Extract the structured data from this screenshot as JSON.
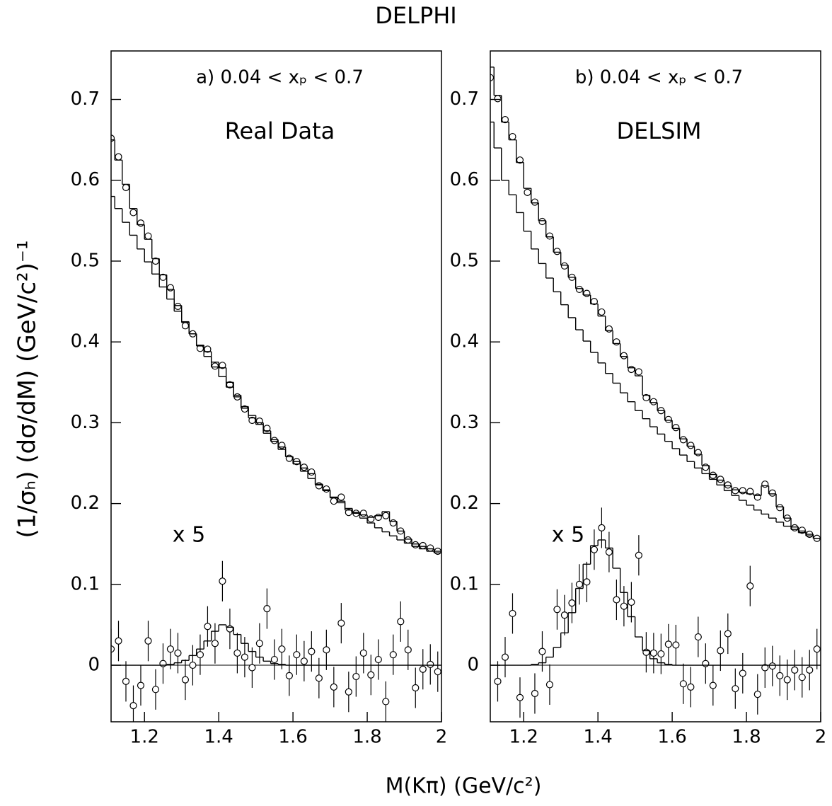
{
  "title": "DELPHI",
  "ylabel": "(1/σₕ) (dσ/dM)   (GeV/c²)⁻¹",
  "xlabel": "M(Kπ)   (GeV/c²)",
  "chart_data": [
    {
      "type": "hist-points",
      "label": "a)  0.04 < xₚ < 0.7",
      "sublabel": "Real Data",
      "scale_note": "x 5",
      "xlim": [
        1.11,
        2.0
      ],
      "ylim": [
        -0.07,
        0.76
      ],
      "xticks": [
        1.2,
        1.4,
        1.6,
        1.8,
        2
      ],
      "yticks": [
        0,
        0.1,
        0.2,
        0.3,
        0.4,
        0.5,
        0.6,
        0.7
      ],
      "x": [
        1.11,
        1.13,
        1.15,
        1.17,
        1.19,
        1.21,
        1.23,
        1.25,
        1.27,
        1.29,
        1.31,
        1.33,
        1.35,
        1.37,
        1.39,
        1.41,
        1.43,
        1.45,
        1.47,
        1.49,
        1.51,
        1.53,
        1.55,
        1.57,
        1.59,
        1.61,
        1.63,
        1.65,
        1.67,
        1.69,
        1.71,
        1.73,
        1.75,
        1.77,
        1.79,
        1.81,
        1.83,
        1.85,
        1.87,
        1.89,
        1.91,
        1.93,
        1.95,
        1.97,
        1.99
      ],
      "series": [
        {
          "style": "points",
          "values": [
            0.652,
            0.629,
            0.591,
            0.56,
            0.547,
            0.531,
            0.5,
            0.48,
            0.467,
            0.444,
            0.42,
            0.41,
            0.392,
            0.391,
            0.37,
            0.371,
            0.347,
            0.332,
            0.317,
            0.303,
            0.302,
            0.293,
            0.278,
            0.272,
            0.256,
            0.252,
            0.245,
            0.239,
            0.222,
            0.218,
            0.203,
            0.208,
            0.189,
            0.188,
            0.188,
            0.181,
            0.183,
            0.185,
            0.176,
            0.166,
            0.155,
            0.149,
            0.148,
            0.145,
            0.141
          ]
        },
        {
          "style": "step",
          "values": [
            0.65,
            0.625,
            0.595,
            0.565,
            0.545,
            0.527,
            0.503,
            0.483,
            0.465,
            0.445,
            0.425,
            0.41,
            0.395,
            0.388,
            0.375,
            0.368,
            0.35,
            0.334,
            0.318,
            0.306,
            0.3,
            0.29,
            0.279,
            0.27,
            0.258,
            0.252,
            0.244,
            0.237,
            0.224,
            0.217,
            0.207,
            0.203,
            0.192,
            0.189,
            0.186,
            0.183,
            0.185,
            0.19,
            0.178,
            0.166,
            0.156,
            0.15,
            0.147,
            0.144,
            0.141
          ]
        },
        {
          "style": "step",
          "values": [
            0.58,
            0.565,
            0.548,
            0.532,
            0.515,
            0.499,
            0.484,
            0.468,
            0.453,
            0.438,
            0.424,
            0.41,
            0.396,
            0.382,
            0.369,
            0.357,
            0.344,
            0.332,
            0.32,
            0.309,
            0.298,
            0.287,
            0.277,
            0.267,
            0.258,
            0.249,
            0.24,
            0.231,
            0.223,
            0.216,
            0.208,
            0.201,
            0.194,
            0.188,
            0.182,
            0.176,
            0.17,
            0.165,
            0.16,
            0.155,
            0.151,
            0.147,
            0.144,
            0.141,
            0.139
          ]
        },
        {
          "style": "points",
          "error": 0.025,
          "values": [
            0.02,
            0.03,
            -0.02,
            -0.05,
            -0.025,
            0.03,
            -0.03,
            0.002,
            0.02,
            0.015,
            -0.018,
            0.0,
            0.013,
            0.048,
            0.027,
            0.104,
            0.045,
            0.015,
            0.01,
            -0.003,
            0.027,
            0.07,
            0.007,
            0.02,
            -0.013,
            0.013,
            0.005,
            0.017,
            -0.016,
            0.019,
            -0.027,
            0.052,
            -0.033,
            -0.014,
            0.015,
            -0.012,
            0.007,
            -0.045,
            0.013,
            0.054,
            0.019,
            -0.028,
            -0.005,
            0.001,
            -0.008
          ]
        },
        {
          "style": "step",
          "values": [
            0,
            0,
            0,
            0,
            0,
            0,
            0,
            0,
            0.001,
            0.003,
            0.006,
            0.012,
            0.02,
            0.03,
            0.042,
            0.05,
            0.047,
            0.038,
            0.027,
            0.017,
            0.01,
            0.005,
            0.002,
            0.001,
            0,
            0,
            0,
            0,
            0,
            0,
            0,
            0,
            0,
            0,
            0,
            0,
            0,
            0,
            0,
            0,
            0,
            0,
            0,
            0,
            0
          ]
        }
      ]
    },
    {
      "type": "hist-points",
      "label": "b)  0.04 < xₚ < 0.7",
      "sublabel": "DELSIM",
      "scale_note": "x 5",
      "xlim": [
        1.11,
        2.0
      ],
      "ylim": [
        -0.07,
        0.76
      ],
      "xticks": [
        1.2,
        1.4,
        1.6,
        1.8,
        2
      ],
      "yticks": [
        0,
        0.1,
        0.2,
        0.3,
        0.4,
        0.5,
        0.6,
        0.7
      ],
      "x": [
        1.11,
        1.13,
        1.15,
        1.17,
        1.19,
        1.21,
        1.23,
        1.25,
        1.27,
        1.29,
        1.31,
        1.33,
        1.35,
        1.37,
        1.39,
        1.41,
        1.43,
        1.45,
        1.47,
        1.49,
        1.51,
        1.53,
        1.55,
        1.57,
        1.59,
        1.61,
        1.63,
        1.65,
        1.67,
        1.69,
        1.71,
        1.73,
        1.75,
        1.77,
        1.79,
        1.81,
        1.83,
        1.85,
        1.87,
        1.89,
        1.91,
        1.93,
        1.95,
        1.97,
        1.99
      ],
      "series": [
        {
          "style": "points",
          "values": [
            0.727,
            0.701,
            0.675,
            0.654,
            0.625,
            0.585,
            0.573,
            0.549,
            0.531,
            0.512,
            0.494,
            0.48,
            0.465,
            0.46,
            0.45,
            0.437,
            0.416,
            0.4,
            0.383,
            0.366,
            0.363,
            0.331,
            0.326,
            0.315,
            0.304,
            0.294,
            0.279,
            0.272,
            0.263,
            0.245,
            0.235,
            0.23,
            0.223,
            0.216,
            0.216,
            0.215,
            0.208,
            0.224,
            0.213,
            0.195,
            0.182,
            0.17,
            0.167,
            0.162,
            0.157
          ]
        },
        {
          "style": "step",
          "values": [
            0.74,
            0.705,
            0.672,
            0.65,
            0.622,
            0.59,
            0.572,
            0.55,
            0.53,
            0.511,
            0.495,
            0.48,
            0.466,
            0.458,
            0.447,
            0.432,
            0.414,
            0.398,
            0.382,
            0.368,
            0.358,
            0.334,
            0.325,
            0.315,
            0.303,
            0.293,
            0.28,
            0.271,
            0.261,
            0.247,
            0.236,
            0.229,
            0.222,
            0.217,
            0.214,
            0.212,
            0.21,
            0.222,
            0.212,
            0.196,
            0.182,
            0.171,
            0.166,
            0.162,
            0.157
          ]
        },
        {
          "style": "step",
          "values": [
            0.672,
            0.64,
            0.6,
            0.582,
            0.56,
            0.537,
            0.515,
            0.497,
            0.479,
            0.462,
            0.446,
            0.43,
            0.415,
            0.401,
            0.387,
            0.374,
            0.361,
            0.349,
            0.337,
            0.326,
            0.315,
            0.305,
            0.295,
            0.286,
            0.277,
            0.268,
            0.26,
            0.252,
            0.244,
            0.237,
            0.23,
            0.223,
            0.216,
            0.21,
            0.204,
            0.198,
            0.192,
            0.187,
            0.182,
            0.177,
            0.172,
            0.168,
            0.164,
            0.16,
            0.157
          ]
        },
        {
          "style": "points",
          "error": 0.025,
          "values": [
            null,
            -0.02,
            0.01,
            0.064,
            -0.04,
            null,
            -0.035,
            0.017,
            -0.024,
            0.069,
            0.062,
            0.077,
            0.1,
            0.103,
            0.143,
            0.17,
            0.14,
            0.081,
            0.073,
            0.078,
            0.136,
            0.016,
            0.015,
            0.014,
            0.026,
            0.025,
            -0.023,
            -0.027,
            0.035,
            0.002,
            -0.025,
            0.018,
            0.039,
            -0.029,
            -0.01,
            0.098,
            -0.036,
            -0.003,
            -0.001,
            -0.013,
            -0.018,
            -0.006,
            -0.015,
            -0.006,
            0.02
          ]
        },
        {
          "style": "step",
          "values": [
            0,
            0,
            0,
            0,
            0,
            0,
            0.001,
            0.003,
            0.01,
            0.022,
            0.04,
            0.065,
            0.095,
            0.125,
            0.148,
            0.155,
            0.145,
            0.12,
            0.09,
            0.06,
            0.035,
            0.018,
            0.008,
            0.003,
            0.001,
            0,
            0,
            0,
            0,
            0,
            0,
            0,
            0,
            0,
            0,
            0,
            0,
            0,
            0,
            0,
            0,
            0,
            0,
            0,
            0
          ]
        }
      ]
    }
  ]
}
